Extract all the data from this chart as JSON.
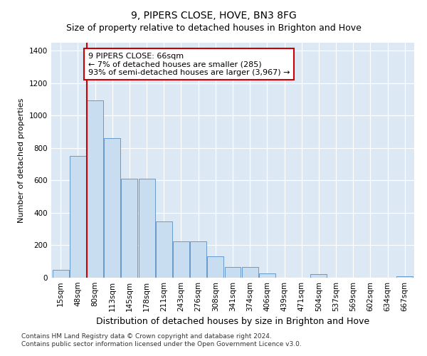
{
  "title": "9, PIPERS CLOSE, HOVE, BN3 8FG",
  "subtitle": "Size of property relative to detached houses in Brighton and Hove",
  "xlabel": "Distribution of detached houses by size in Brighton and Hove",
  "ylabel": "Number of detached properties",
  "footnote1": "Contains HM Land Registry data © Crown copyright and database right 2024.",
  "footnote2": "Contains public sector information licensed under the Open Government Licence v3.0.",
  "categories": [
    "15sqm",
    "48sqm",
    "80sqm",
    "113sqm",
    "145sqm",
    "178sqm",
    "211sqm",
    "243sqm",
    "276sqm",
    "308sqm",
    "341sqm",
    "374sqm",
    "406sqm",
    "439sqm",
    "471sqm",
    "504sqm",
    "537sqm",
    "569sqm",
    "602sqm",
    "634sqm",
    "667sqm"
  ],
  "values": [
    48,
    750,
    1095,
    860,
    612,
    612,
    345,
    225,
    225,
    130,
    65,
    65,
    28,
    0,
    0,
    20,
    0,
    0,
    0,
    0,
    10
  ],
  "bar_color": "#c8ddf0",
  "bar_edge_color": "#6699cc",
  "annotation_line1": "9 PIPERS CLOSE: 66sqm",
  "annotation_line2": "← 7% of detached houses are smaller (285)",
  "annotation_line3": "93% of semi-detached houses are larger (3,967) →",
  "vline_color": "#cc0000",
  "vline_x": 1.5,
  "ylim_max": 1450,
  "yticks": [
    0,
    200,
    400,
    600,
    800,
    1000,
    1200,
    1400
  ],
  "plot_bg_color": "#dce8f4",
  "fig_bg_color": "#ffffff",
  "grid_color": "#ffffff",
  "title_fontsize": 10,
  "subtitle_fontsize": 9,
  "ylabel_fontsize": 8,
  "xlabel_fontsize": 9,
  "tick_fontsize": 7.5,
  "annot_fontsize": 8,
  "footnote_fontsize": 6.5
}
